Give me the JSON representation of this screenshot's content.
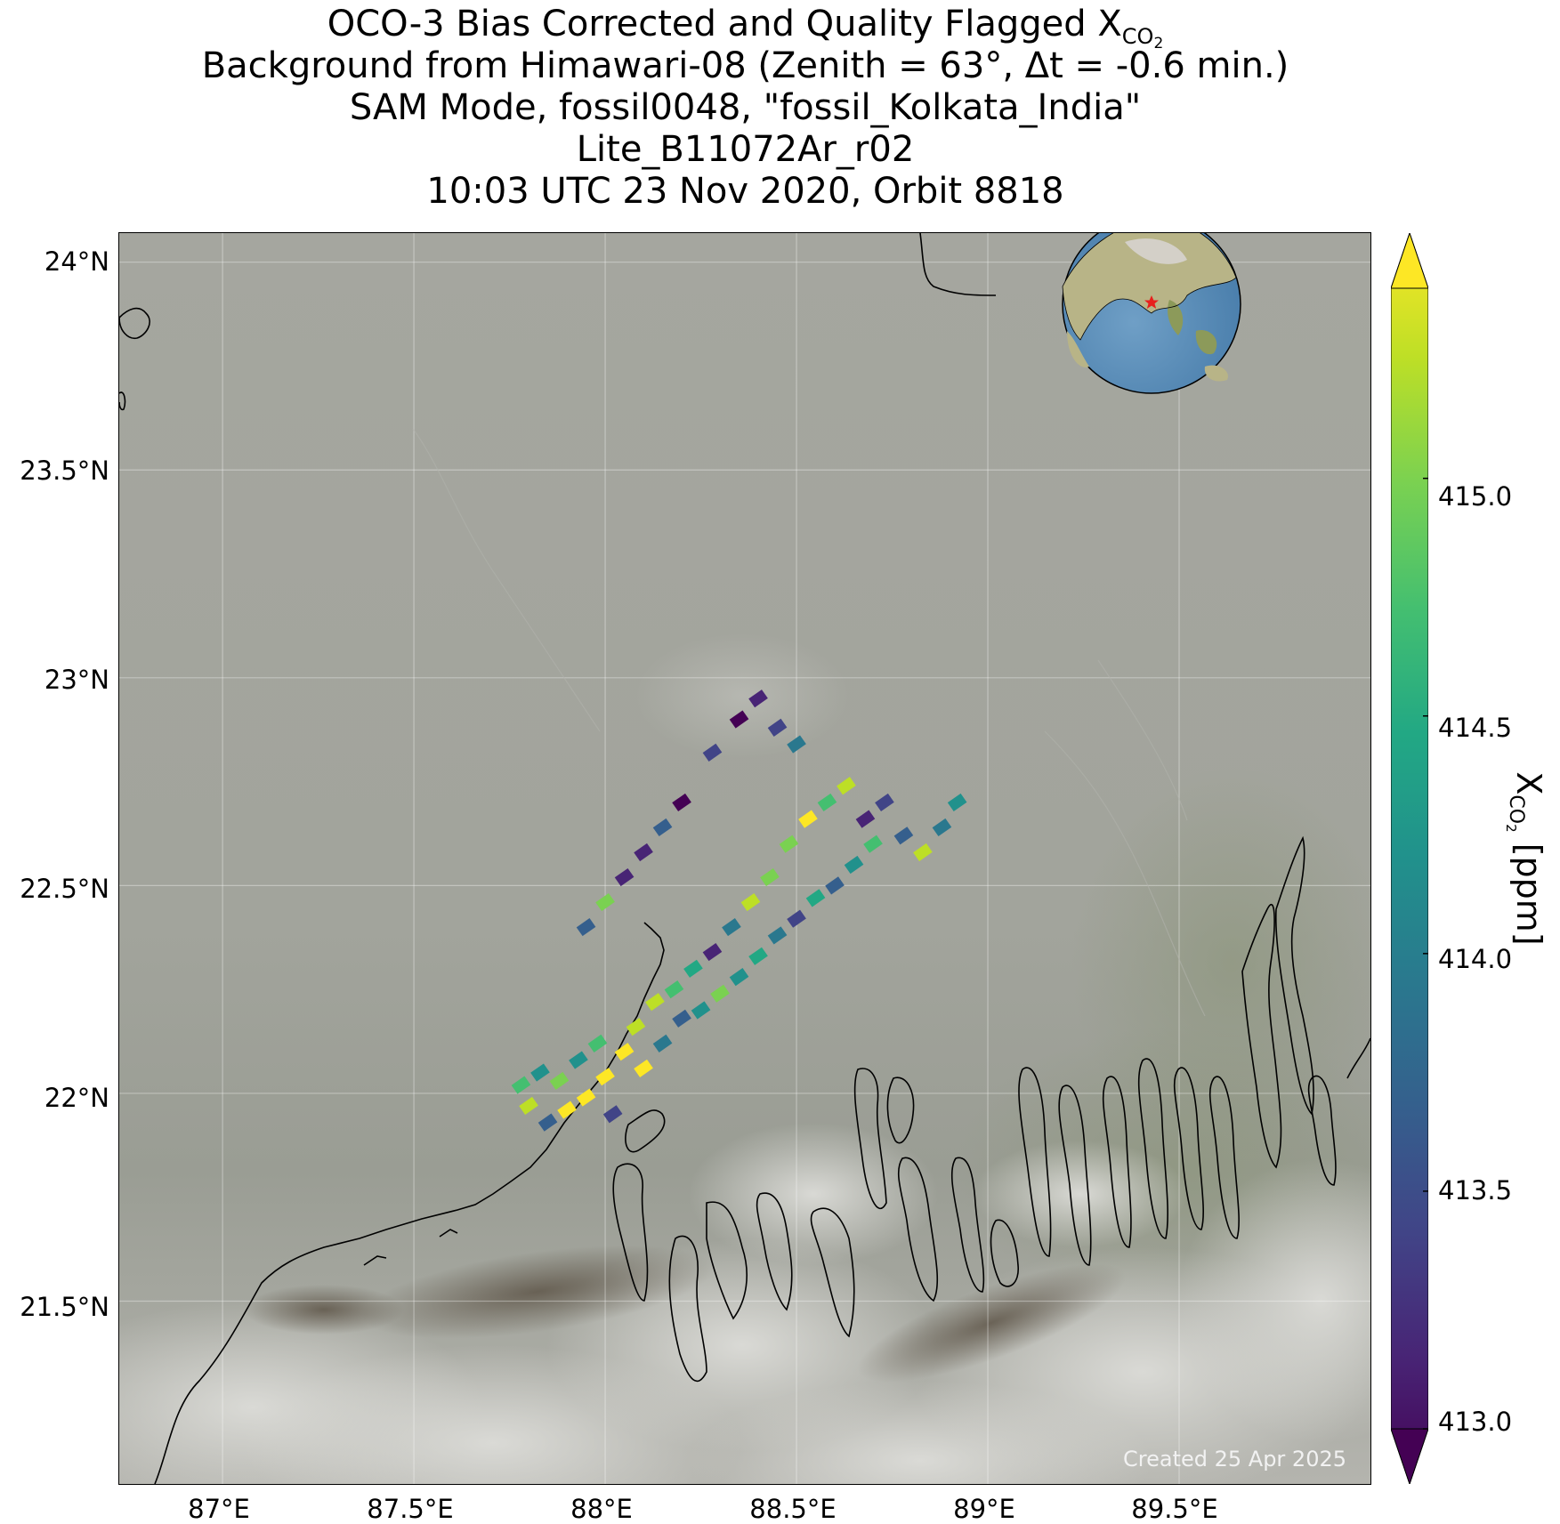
{
  "title": {
    "line1_prefix": "OCO-3 Bias Corrected and Quality Flagged X",
    "line1_sub": "CO",
    "line1_subsub": "2",
    "line2": "Background from Himawari-08 (Zenith = 63°, Δt = -0.6 min.)",
    "line3": "SAM Mode, fossil0048, \"fossil_Kolkata_India\"",
    "line4": "Lite_B11072Ar_r02",
    "line5": "10:03 UTC 23 Nov 2020, Orbit 8818"
  },
  "credit": "Created 25 Apr 2025",
  "map": {
    "lon_range": [
      86.73,
      90.0
    ],
    "lat_range": [
      21.06,
      24.07
    ],
    "lon_ticks": [
      87.0,
      87.5,
      88.0,
      88.5,
      89.0,
      89.5
    ],
    "lon_tick_labels": [
      "87°E",
      "87.5°E",
      "88°E",
      "88.5°E",
      "89°E",
      "89.5°E"
    ],
    "lat_ticks": [
      21.5,
      22.0,
      22.5,
      23.0,
      23.5,
      24.0
    ],
    "lat_tick_labels": [
      "21.5°N",
      "22°N",
      "22.5°N",
      "23°N",
      "23.5°N",
      "24°N"
    ],
    "gridlines": true,
    "target": {
      "name": "fossil_Kolkata_India",
      "marker": "red-star"
    },
    "inset_globe": {
      "position": "top-right",
      "marker": "red-star"
    }
  },
  "colorbar": {
    "label_prefix": "X",
    "label_sub": "CO",
    "label_subsub": "2",
    "label_units": " [ppm]",
    "vmin": 413.0,
    "vmax": 415.4,
    "ticks": [
      413.0,
      413.5,
      414.0,
      414.5,
      415.0
    ],
    "tick_labels": [
      "413.0",
      "413.5",
      "414.0",
      "414.5",
      "415.0"
    ],
    "colormap": "viridis",
    "extend": "both"
  },
  "chart_data": {
    "type": "scatter",
    "description": "OCO-3 SAM soundings of XCO2 (ppm) over Kolkata region",
    "points": [
      [
        87.78,
        22.02,
        414.6
      ],
      [
        87.8,
        21.97,
        415.2
      ],
      [
        87.83,
        22.05,
        414.3
      ],
      [
        87.85,
        21.93,
        413.8
      ],
      [
        87.88,
        22.03,
        414.9
      ],
      [
        87.9,
        21.96,
        415.4
      ],
      [
        87.93,
        22.08,
        414.1
      ],
      [
        87.95,
        21.99,
        415.3
      ],
      [
        87.98,
        22.12,
        414.7
      ],
      [
        88.0,
        22.04,
        415.4
      ],
      [
        88.02,
        21.95,
        413.5
      ],
      [
        88.05,
        22.1,
        415.3
      ],
      [
        88.08,
        22.16,
        415.1
      ],
      [
        88.1,
        22.06,
        415.4
      ],
      [
        88.13,
        22.22,
        415.2
      ],
      [
        88.15,
        22.12,
        414.0
      ],
      [
        88.18,
        22.25,
        414.6
      ],
      [
        88.2,
        22.18,
        413.6
      ],
      [
        88.23,
        22.3,
        414.4
      ],
      [
        88.25,
        22.2,
        414.1
      ],
      [
        88.28,
        22.34,
        413.3
      ],
      [
        88.3,
        22.24,
        414.8
      ],
      [
        88.33,
        22.4,
        413.9
      ],
      [
        88.35,
        22.28,
        414.2
      ],
      [
        88.38,
        22.46,
        415.2
      ],
      [
        88.4,
        22.33,
        414.4
      ],
      [
        88.43,
        22.52,
        414.9
      ],
      [
        88.45,
        22.38,
        414.0
      ],
      [
        88.48,
        22.6,
        415.0
      ],
      [
        88.5,
        22.42,
        413.4
      ],
      [
        88.53,
        22.66,
        415.3
      ],
      [
        88.55,
        22.47,
        414.5
      ],
      [
        88.58,
        22.7,
        414.7
      ],
      [
        88.6,
        22.5,
        413.6
      ],
      [
        88.63,
        22.74,
        415.1
      ],
      [
        88.65,
        22.55,
        414.3
      ],
      [
        88.68,
        22.66,
        413.2
      ],
      [
        88.7,
        22.6,
        414.6
      ],
      [
        88.73,
        22.7,
        413.5
      ],
      [
        88.78,
        22.62,
        413.8
      ],
      [
        88.83,
        22.58,
        415.2
      ],
      [
        88.88,
        22.64,
        413.9
      ],
      [
        88.92,
        22.7,
        414.2
      ],
      [
        87.95,
        22.4,
        413.7
      ],
      [
        88.0,
        22.46,
        414.8
      ],
      [
        88.05,
        22.52,
        413.3
      ],
      [
        88.1,
        22.58,
        413.2
      ],
      [
        88.15,
        22.64,
        413.6
      ],
      [
        88.2,
        22.7,
        413.1
      ],
      [
        88.28,
        22.82,
        413.4
      ],
      [
        88.35,
        22.9,
        413.0
      ],
      [
        88.4,
        22.95,
        413.2
      ],
      [
        88.45,
        22.88,
        413.5
      ],
      [
        88.5,
        22.84,
        413.9
      ]
    ]
  }
}
